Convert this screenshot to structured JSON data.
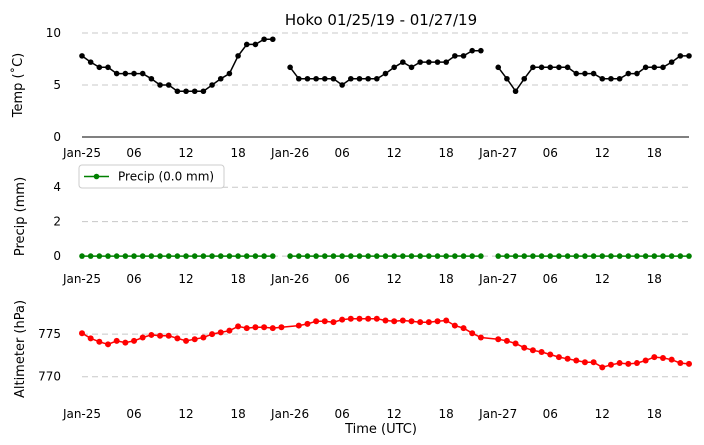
{
  "chart_data": [
    {
      "type": "line",
      "title": "Hoko 01/25/19 - 01/27/19",
      "ylabel": "Temp (˚C)",
      "xlabel": "",
      "x_ticks": [
        "Jan-25",
        "06",
        "12",
        "18",
        "Jan-26",
        "06",
        "12",
        "18",
        "Jan-27",
        "06",
        "12",
        "18"
      ],
      "x_range_hours": [
        0,
        70
      ],
      "ylim": [
        0,
        10
      ],
      "y_ticks": [
        "0",
        "5",
        "10"
      ],
      "y_tick_values": [
        0,
        5,
        10
      ],
      "grid": true,
      "color": "#000000",
      "series": [
        {
          "x_hours": [
            0,
            1,
            2,
            3,
            4,
            5,
            6,
            7,
            8,
            9,
            10,
            11,
            12,
            13,
            14,
            15,
            16,
            17,
            18,
            19,
            20,
            21,
            22,
            23,
            24,
            25,
            26,
            27,
            28,
            29,
            30,
            31,
            32,
            33,
            34,
            35,
            36,
            37,
            38,
            39,
            40,
            41,
            42,
            43,
            44,
            45,
            46,
            47,
            48,
            49,
            50,
            51,
            52,
            53,
            54,
            55,
            56,
            57,
            58,
            59,
            60,
            61,
            62,
            63,
            64,
            65,
            66,
            67,
            68,
            69,
            70
          ],
          "values": [
            7.8,
            7.2,
            6.7,
            6.7,
            6.1,
            6.1,
            6.1,
            6.1,
            5.6,
            5.0,
            5.0,
            4.4,
            4.4,
            4.4,
            4.4,
            5.0,
            5.6,
            6.1,
            7.8,
            8.9,
            8.9,
            9.4,
            9.4,
            null,
            6.7,
            5.6,
            5.6,
            5.6,
            5.6,
            5.6,
            5.0,
            5.6,
            5.6,
            5.6,
            5.6,
            6.1,
            6.7,
            7.2,
            6.7,
            7.2,
            7.2,
            7.2,
            7.2,
            7.8,
            7.8,
            8.3,
            8.3,
            null,
            6.7,
            5.6,
            4.4,
            5.6,
            6.7,
            6.7,
            6.7,
            6.7,
            6.7,
            6.1,
            6.1,
            6.1,
            5.6,
            5.6,
            5.6,
            6.1,
            6.1,
            6.7,
            6.7,
            6.7,
            7.2,
            7.8,
            7.8
          ]
        }
      ]
    },
    {
      "type": "line",
      "title": "",
      "ylabel": "Precip (mm)",
      "xlabel": "",
      "x_ticks": [
        "Jan-25",
        "06",
        "12",
        "18",
        "Jan-26",
        "06",
        "12",
        "18",
        "Jan-27",
        "06",
        "12",
        "18"
      ],
      "x_range_hours": [
        0,
        70
      ],
      "ylim": [
        -0.4,
        5
      ],
      "y_ticks": [
        "0",
        "2",
        "4"
      ],
      "y_tick_values": [
        0,
        2,
        4
      ],
      "grid": true,
      "legend": "upper-left",
      "color": "#008000",
      "series": [
        {
          "name": "Precip (0.0 mm)",
          "x_hours": [
            0,
            1,
            2,
            3,
            4,
            5,
            6,
            7,
            8,
            9,
            10,
            11,
            12,
            13,
            14,
            15,
            16,
            17,
            18,
            19,
            20,
            21,
            22,
            24,
            25,
            26,
            27,
            28,
            29,
            30,
            31,
            32,
            33,
            34,
            35,
            36,
            37,
            38,
            39,
            40,
            41,
            42,
            43,
            44,
            45,
            46,
            48,
            49,
            50,
            51,
            52,
            53,
            54,
            55,
            56,
            57,
            58,
            59,
            60,
            61,
            62,
            63,
            64,
            65,
            66,
            67,
            68,
            69,
            70
          ],
          "values": [
            0,
            0,
            0,
            0,
            0,
            0,
            0,
            0,
            0,
            0,
            0,
            0,
            0,
            0,
            0,
            0,
            0,
            0,
            0,
            0,
            0,
            0,
            0,
            0,
            0,
            0,
            0,
            0,
            0,
            0,
            0,
            0,
            0,
            0,
            0,
            0,
            0,
            0,
            0,
            0,
            0,
            0,
            0,
            0,
            0,
            0,
            0,
            0,
            0,
            0,
            0,
            0,
            0,
            0,
            0,
            0,
            0,
            0,
            0,
            0,
            0,
            0,
            0,
            0,
            0,
            0,
            0,
            0,
            0
          ]
        }
      ]
    },
    {
      "type": "line",
      "title": "",
      "ylabel": "Altimeter (hPa)",
      "xlabel": "Time (UTC)",
      "x_ticks": [
        "Jan-25",
        "06",
        "12",
        "18",
        "Jan-26",
        "06",
        "12",
        "18",
        "Jan-27",
        "06",
        "12",
        "18"
      ],
      "x_range_hours": [
        0,
        70
      ],
      "ylim": [
        767.5,
        779
      ],
      "y_ticks": [
        "770",
        "775"
      ],
      "y_tick_values": [
        770,
        775
      ],
      "grid": true,
      "color": "#ff0000",
      "series": [
        {
          "x_hours": [
            0,
            1,
            2,
            3,
            4,
            5,
            6,
            7,
            8,
            9,
            10,
            11,
            12,
            13,
            14,
            15,
            16,
            17,
            18,
            19,
            20,
            21,
            22,
            23,
            25,
            26,
            27,
            28,
            29,
            30,
            31,
            32,
            33,
            34,
            35,
            36,
            37,
            38,
            39,
            40,
            41,
            42,
            43,
            44,
            45,
            46,
            48,
            49,
            50,
            51,
            52,
            53,
            54,
            55,
            56,
            57,
            58,
            59,
            60,
            61,
            62,
            63,
            64,
            65,
            66,
            67,
            68,
            69,
            70
          ],
          "values": [
            775.1,
            774.5,
            774.1,
            773.8,
            774.2,
            774.0,
            774.2,
            774.6,
            774.9,
            774.8,
            774.8,
            774.5,
            774.2,
            774.4,
            774.6,
            775.0,
            775.2,
            775.4,
            775.9,
            775.7,
            775.8,
            775.8,
            775.7,
            775.8,
            776.0,
            776.2,
            776.5,
            776.5,
            776.4,
            776.7,
            776.8,
            776.8,
            776.8,
            776.8,
            776.6,
            776.5,
            776.6,
            776.5,
            776.4,
            776.4,
            776.5,
            776.6,
            776.0,
            775.7,
            775.1,
            774.6,
            774.4,
            774.2,
            773.9,
            773.4,
            773.1,
            772.9,
            772.6,
            772.3,
            772.1,
            771.9,
            771.7,
            771.7,
            771.1,
            771.4,
            771.6,
            771.5,
            771.6,
            771.9,
            772.3,
            772.2,
            772.0,
            771.6,
            771.5
          ]
        }
      ]
    }
  ]
}
